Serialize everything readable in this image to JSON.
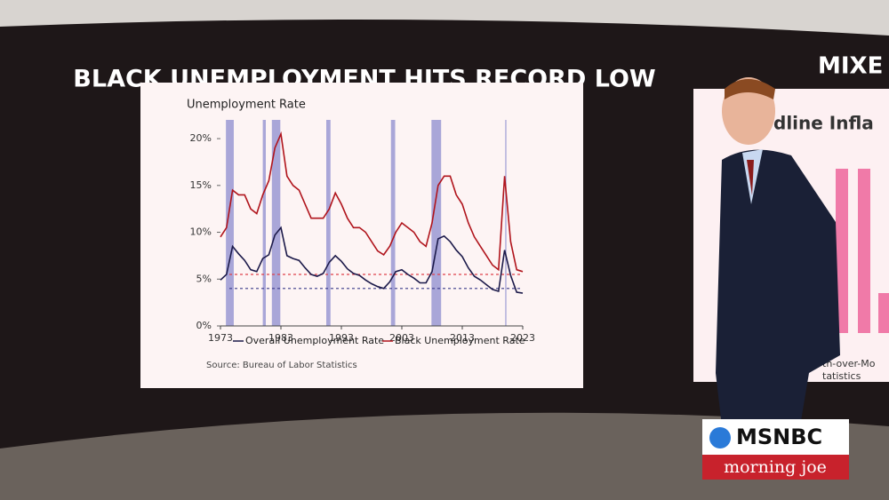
{
  "chart_data": {
    "type": "line",
    "title": "BLACK UNEMPLOYMENT HITS RECORD LOW",
    "y_label": "Unemployment Rate",
    "source": "Source: Bureau of Labor Statistics",
    "x": [
      1973,
      1974,
      1975,
      1976,
      1977,
      1978,
      1979,
      1980,
      1981,
      1982,
      1983,
      1984,
      1985,
      1986,
      1987,
      1988,
      1989,
      1990,
      1991,
      1992,
      1993,
      1994,
      1995,
      1996,
      1997,
      1998,
      1999,
      2000,
      2001,
      2002,
      2003,
      2004,
      2005,
      2006,
      2007,
      2008,
      2009,
      2010,
      2011,
      2012,
      2013,
      2014,
      2015,
      2016,
      2017,
      2018,
      2019,
      2020,
      2021,
      2022,
      2023
    ],
    "series": [
      {
        "name": "Overall Unemployment Rate",
        "color": "#1c1a4a",
        "values": [
          4.9,
          5.5,
          8.5,
          7.7,
          7,
          6,
          5.8,
          7.2,
          7.6,
          9.7,
          10.5,
          7.5,
          7.2,
          7,
          6.2,
          5.5,
          5.3,
          5.6,
          6.8,
          7.5,
          6.9,
          6.1,
          5.6,
          5.4,
          4.9,
          4.5,
          4.2,
          4,
          4.7,
          5.8,
          6,
          5.5,
          5.1,
          4.6,
          4.6,
          5.8,
          9.3,
          9.6,
          9,
          8.1,
          7.4,
          6.2,
          5.3,
          4.9,
          4.4,
          3.9,
          3.7,
          8.1,
          5.4,
          3.6,
          3.5
        ]
      },
      {
        "name": "Black Unemployment Rate",
        "color": "#b0141c",
        "values": [
          9.5,
          10.5,
          14.5,
          14,
          14,
          12.5,
          12,
          14,
          15.5,
          19,
          20.5,
          16,
          15,
          14.5,
          13,
          11.5,
          11.5,
          11.5,
          12.5,
          14.2,
          13,
          11.5,
          10.5,
          10.5,
          10,
          9,
          8,
          7.6,
          8.5,
          10,
          11,
          10.5,
          10,
          9,
          8.5,
          11,
          15,
          16,
          16,
          14,
          13,
          11,
          9.5,
          8.5,
          7.5,
          6.5,
          6,
          16,
          9,
          6,
          5.8
        ]
      }
    ],
    "reference_lines": [
      {
        "value": 5.5,
        "color": "#e0404a"
      },
      {
        "value": 4,
        "color": "#3a3a8a"
      }
    ],
    "recessions": [
      [
        1973.9,
        1975.2
      ],
      [
        1980,
        1980.5
      ],
      [
        1981.5,
        1982.9
      ],
      [
        1990.5,
        1991.2
      ],
      [
        2001.2,
        2001.9
      ],
      [
        2007.9,
        2009.5
      ],
      [
        2020.1,
        2020.3
      ]
    ],
    "recession_color": "#a9a6d8",
    "xlim": [
      1973,
      2023
    ],
    "xticks": [
      1973,
      1983,
      1993,
      2003,
      2013,
      2023
    ],
    "ylim": [
      0,
      22
    ],
    "yticks": [
      {
        "value": 0,
        "label": "0%"
      },
      {
        "value": 5,
        "label": "5%"
      },
      {
        "value": 10,
        "label": "10%"
      },
      {
        "value": 15,
        "label": "15%"
      },
      {
        "value": 20,
        "label": "20%"
      }
    ]
  },
  "scene": {
    "right_title": "MIXE",
    "right_subtitle": "dline Infla",
    "right_note_1": "th-over-Mo",
    "right_note_2": "tatistics",
    "network": "MSNBC",
    "show": "morning joe"
  }
}
